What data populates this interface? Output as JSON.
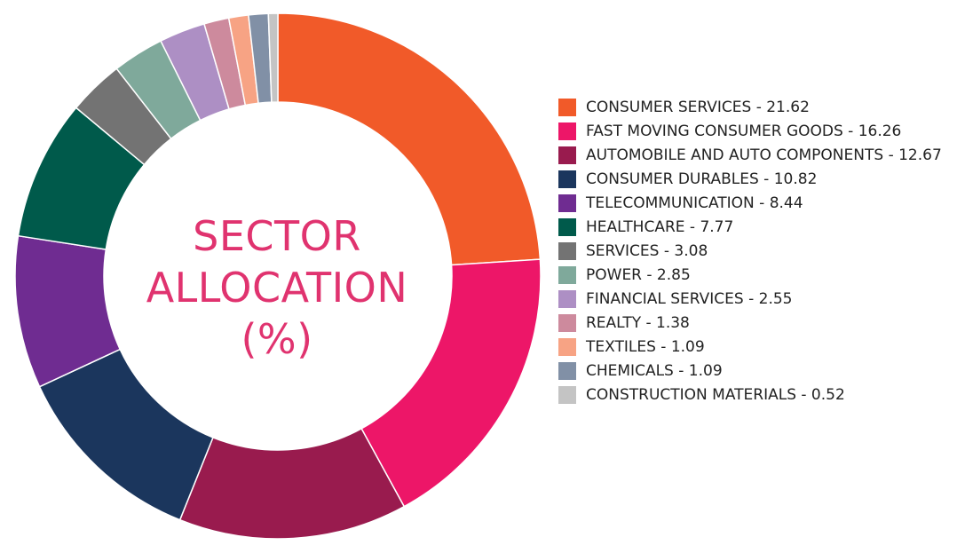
{
  "chart_data": {
    "type": "pie",
    "title": "",
    "center_label": [
      "SECTOR",
      "ALLOCATION",
      "(%)"
    ],
    "legend_position": "right",
    "slices": [
      {
        "label": "CONSUMER SERVICES - 21.62",
        "name": "CONSUMER SERVICES",
        "value": 21.62,
        "color": "#f15a29"
      },
      {
        "label": "FAST MOVING CONSUMER GOODS - 16.26",
        "name": "FAST MOVING CONSUMER GOODS",
        "value": 16.26,
        "color": "#ed1668"
      },
      {
        "label": "AUTOMOBILE AND AUTO COMPONENTS - 12.67",
        "name": "AUTOMOBILE AND AUTO COMPONENTS",
        "value": 12.67,
        "color": "#991b4e"
      },
      {
        "label": "CONSUMER DURABLES - 10.82",
        "name": "CONSUMER DURABLES",
        "value": 10.82,
        "color": "#1b365d"
      },
      {
        "label": "TELECOMMUNICATION - 8.44",
        "name": "TELECOMMUNICATION",
        "value": 8.44,
        "color": "#6f2c91"
      },
      {
        "label": "HEALTHCARE - 7.77",
        "name": "HEALTHCARE",
        "value": 7.77,
        "color": "#005a4b"
      },
      {
        "label": "SERVICES - 3.08",
        "name": "SERVICES",
        "value": 3.08,
        "color": "#737373"
      },
      {
        "label": "POWER - 2.85",
        "name": "POWER",
        "value": 2.85,
        "color": "#7fa99b"
      },
      {
        "label": "FINANCIAL SERVICES - 2.55",
        "name": "FINANCIAL SERVICES",
        "value": 2.55,
        "color": "#ad8fc4"
      },
      {
        "label": "REALTY - 1.38",
        "name": "REALTY",
        "value": 1.38,
        "color": "#cd8a9d"
      },
      {
        "label": "TEXTILES - 1.09",
        "name": "TEXTILES",
        "value": 1.09,
        "color": "#f7a384"
      },
      {
        "label": "CHEMICALS - 1.09",
        "name": "CHEMICALS",
        "value": 1.09,
        "color": "#8190a6"
      },
      {
        "label": "CONSTRUCTION MATERIALS - 0.52",
        "name": "CONSTRUCTION MATERIALS",
        "value": 0.52,
        "color": "#c4c4c4"
      }
    ]
  }
}
